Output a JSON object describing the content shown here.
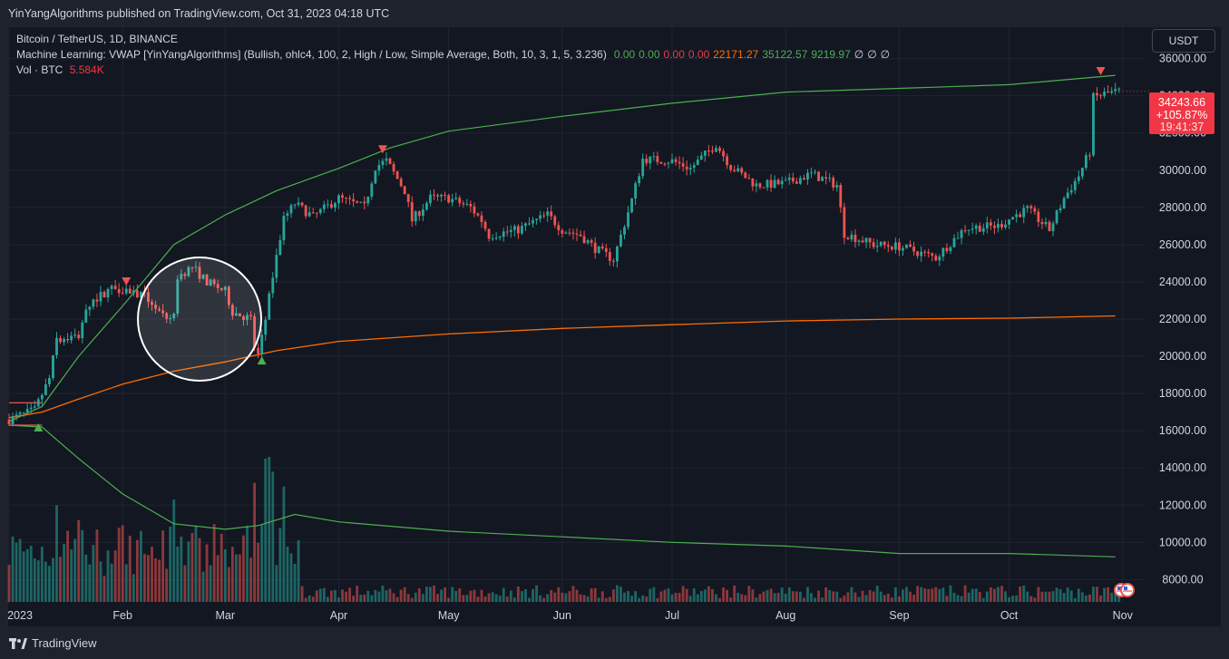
{
  "header": {
    "publisher_line": "YinYangAlgorithms published on TradingView.com, Oct 31, 2023 04:18 UTC"
  },
  "legend": {
    "symbol": "Bitcoin / TetherUS, 1D, BINANCE",
    "indicator_name": "Machine Learning: VWAP [YinYangAlgorithms] (Bullish, ohlc4, 100, 2, High / Low, Simple Average, Both, 10, 3, 1, 5, 3.236)",
    "indicator_values": [
      {
        "text": "0.00",
        "color": "#4caf50"
      },
      {
        "text": "0.00",
        "color": "#4caf50"
      },
      {
        "text": "0.00",
        "color": "#f23645"
      },
      {
        "text": "0.00",
        "color": "#f23645"
      },
      {
        "text": "22171.27",
        "color": "#ff6d00"
      },
      {
        "text": "35122.57",
        "color": "#4caf50"
      },
      {
        "text": "9219.97",
        "color": "#4caf50"
      },
      {
        "text": "∅",
        "color": "#d1d4dc"
      },
      {
        "text": "∅",
        "color": "#d1d4dc"
      },
      {
        "text": "∅",
        "color": "#d1d4dc"
      }
    ],
    "volume_label": "Vol · BTC",
    "volume_value": "5.584K"
  },
  "currency_button": "USDT",
  "price_tag": {
    "price": "34243.66",
    "change": "+105.87%",
    "countdown": "19:41:37",
    "color": "#f23645"
  },
  "footer": {
    "brand": "TradingView"
  },
  "colors": {
    "up": "#26a69a",
    "down": "#ef5350",
    "band": "#4caf50",
    "vwap": "#ff6d00",
    "background": "#131722"
  },
  "chart_data": {
    "type": "candlestick",
    "title": "Bitcoin / TetherUS, 1D, BINANCE",
    "y_ticks": [
      36000,
      34000,
      32000,
      30000,
      28000,
      26000,
      24000,
      22000,
      20000,
      18000,
      16000,
      14000,
      12000,
      10000,
      8000
    ],
    "y_tick_labels": [
      "36000.00",
      "34000.00",
      "32000.00",
      "30000.00",
      "28000.00",
      "26000.00",
      "24000.00",
      "22000.00",
      "20000.00",
      "18000.00",
      "16000.00",
      "14000.00",
      "12000.00",
      "10000.00",
      "8000.00"
    ],
    "ylim": [
      6800,
      37200
    ],
    "x_start": "2023-01-01",
    "x_end": "2023-11-07",
    "x_ticks": [
      {
        "date": "2023-01-01",
        "label": "2023"
      },
      {
        "date": "2023-02-01",
        "label": "Feb"
      },
      {
        "date": "2023-03-01",
        "label": "Mar"
      },
      {
        "date": "2023-04-01",
        "label": "Apr"
      },
      {
        "date": "2023-05-01",
        "label": "May"
      },
      {
        "date": "2023-06-01",
        "label": "Jun"
      },
      {
        "date": "2023-07-01",
        "label": "Jul"
      },
      {
        "date": "2023-08-01",
        "label": "Aug"
      },
      {
        "date": "2023-09-01",
        "label": "Sep"
      },
      {
        "date": "2023-10-01",
        "label": "Oct"
      },
      {
        "date": "2023-11-01",
        "label": "Nov"
      }
    ],
    "price_path": [
      [
        "2023-01-01",
        16600
      ],
      [
        "2023-01-08",
        17100
      ],
      [
        "2023-01-12",
        18800
      ],
      [
        "2023-01-14",
        20900
      ],
      [
        "2023-01-20",
        21100
      ],
      [
        "2023-01-22",
        22700
      ],
      [
        "2023-01-29",
        23700
      ],
      [
        "2023-02-02",
        23600
      ],
      [
        "2023-02-07",
        23200
      ],
      [
        "2023-02-09",
        22900
      ],
      [
        "2023-02-13",
        21800
      ],
      [
        "2023-02-15",
        22300
      ],
      [
        "2023-02-16",
        24300
      ],
      [
        "2023-02-20",
        24800
      ],
      [
        "2023-02-24",
        24000
      ],
      [
        "2023-03-01",
        23500
      ],
      [
        "2023-03-03",
        22400
      ],
      [
        "2023-03-08",
        22000
      ],
      [
        "2023-03-09",
        20500
      ],
      [
        "2023-03-10",
        20100
      ],
      [
        "2023-03-12",
        22000
      ],
      [
        "2023-03-14",
        24300
      ],
      [
        "2023-03-17",
        27400
      ],
      [
        "2023-03-20",
        28200
      ],
      [
        "2023-03-25",
        27500
      ],
      [
        "2023-04-01",
        28500
      ],
      [
        "2023-04-08",
        28000
      ],
      [
        "2023-04-11",
        30200
      ],
      [
        "2023-04-14",
        30500
      ],
      [
        "2023-04-19",
        28900
      ],
      [
        "2023-04-21",
        27300
      ],
      [
        "2023-04-26",
        28500
      ],
      [
        "2023-05-01",
        28500
      ],
      [
        "2023-05-07",
        28000
      ],
      [
        "2023-05-10",
        27300
      ],
      [
        "2023-05-12",
        26500
      ],
      [
        "2023-05-20",
        26800
      ],
      [
        "2023-05-28",
        27600
      ],
      [
        "2023-06-01",
        26800
      ],
      [
        "2023-06-06",
        26500
      ],
      [
        "2023-06-10",
        25800
      ],
      [
        "2023-06-15",
        25200
      ],
      [
        "2023-06-20",
        28400
      ],
      [
        "2023-06-23",
        30600
      ],
      [
        "2023-07-01",
        30500
      ],
      [
        "2023-07-06",
        30100
      ],
      [
        "2023-07-13",
        31400
      ],
      [
        "2023-07-17",
        30200
      ],
      [
        "2023-07-24",
        29200
      ],
      [
        "2023-08-01",
        29300
      ],
      [
        "2023-08-08",
        29800
      ],
      [
        "2023-08-15",
        29200
      ],
      [
        "2023-08-17",
        26600
      ],
      [
        "2023-08-25",
        26000
      ],
      [
        "2023-09-01",
        25900
      ],
      [
        "2023-09-11",
        25300
      ],
      [
        "2023-09-19",
        26900
      ],
      [
        "2023-09-28",
        27000
      ],
      [
        "2023-10-02",
        27500
      ],
      [
        "2023-10-06",
        27900
      ],
      [
        "2023-10-12",
        26800
      ],
      [
        "2023-10-16",
        28500
      ],
      [
        "2023-10-20",
        29700
      ],
      [
        "2023-10-23",
        31000
      ],
      [
        "2023-10-24",
        33900
      ],
      [
        "2023-10-27",
        34100
      ],
      [
        "2023-10-31",
        34243
      ]
    ],
    "upper_band": [
      [
        "2023-01-01",
        16500
      ],
      [
        "2023-01-10",
        17300
      ],
      [
        "2023-01-20",
        20000
      ],
      [
        "2023-02-01",
        22700
      ],
      [
        "2023-02-15",
        26000
      ],
      [
        "2023-03-01",
        27600
      ],
      [
        "2023-03-15",
        28900
      ],
      [
        "2023-04-01",
        30100
      ],
      [
        "2023-04-15",
        31200
      ],
      [
        "2023-05-01",
        32100
      ],
      [
        "2023-06-01",
        32900
      ],
      [
        "2023-07-01",
        33600
      ],
      [
        "2023-08-01",
        34200
      ],
      [
        "2023-09-01",
        34400
      ],
      [
        "2023-10-01",
        34600
      ],
      [
        "2023-10-30",
        35100
      ]
    ],
    "vwap_line": [
      [
        "2023-01-01",
        16700
      ],
      [
        "2023-01-10",
        17000
      ],
      [
        "2023-01-20",
        17700
      ],
      [
        "2023-02-01",
        18500
      ],
      [
        "2023-02-15",
        19200
      ],
      [
        "2023-03-01",
        19700
      ],
      [
        "2023-03-15",
        20300
      ],
      [
        "2023-04-01",
        20800
      ],
      [
        "2023-05-01",
        21200
      ],
      [
        "2023-06-01",
        21500
      ],
      [
        "2023-07-01",
        21700
      ],
      [
        "2023-08-01",
        21900
      ],
      [
        "2023-09-01",
        22000
      ],
      [
        "2023-10-01",
        22050
      ],
      [
        "2023-10-30",
        22171
      ]
    ],
    "lower_band": [
      [
        "2023-01-01",
        16300
      ],
      [
        "2023-01-10",
        16200
      ],
      [
        "2023-01-20",
        14500
      ],
      [
        "2023-02-01",
        12600
      ],
      [
        "2023-02-15",
        11000
      ],
      [
        "2023-03-01",
        10700
      ],
      [
        "2023-03-10",
        10900
      ],
      [
        "2023-03-20",
        11500
      ],
      [
        "2023-04-01",
        11100
      ],
      [
        "2023-05-01",
        10600
      ],
      [
        "2023-06-01",
        10300
      ],
      [
        "2023-07-01",
        10000
      ],
      [
        "2023-08-01",
        9800
      ],
      [
        "2023-09-01",
        9400
      ],
      [
        "2023-10-01",
        9400
      ],
      [
        "2023-10-30",
        9220
      ]
    ],
    "channel_lines": [
      {
        "color": "#ef5350",
        "y": 17500,
        "x_from": "2023-01-01",
        "x_to": "2023-01-10"
      },
      {
        "color": "#ef5350",
        "y": 16300,
        "x_from": "2023-01-01",
        "x_to": "2023-01-10"
      }
    ],
    "signals": [
      {
        "date": "2023-01-09",
        "price": 16200,
        "kind": "buy"
      },
      {
        "date": "2023-02-02",
        "price": 24000,
        "kind": "sell"
      },
      {
        "date": "2023-03-11",
        "price": 19800,
        "kind": "buy"
      },
      {
        "date": "2023-04-13",
        "price": 31100,
        "kind": "sell"
      },
      {
        "date": "2023-10-26",
        "price": 35300,
        "kind": "sell"
      }
    ],
    "highlight_circle": {
      "date": "2023-02-22",
      "price": 22000
    },
    "volume_spikes": [
      [
        "2023-01-14",
        12000
      ],
      [
        "2023-01-20",
        11200
      ],
      [
        "2023-02-15",
        12300
      ],
      [
        "2023-03-09",
        13200
      ],
      [
        "2023-03-12",
        14500
      ],
      [
        "2023-03-13",
        14600
      ],
      [
        "2023-03-14",
        13800
      ],
      [
        "2023-03-17",
        13000
      ]
    ]
  }
}
